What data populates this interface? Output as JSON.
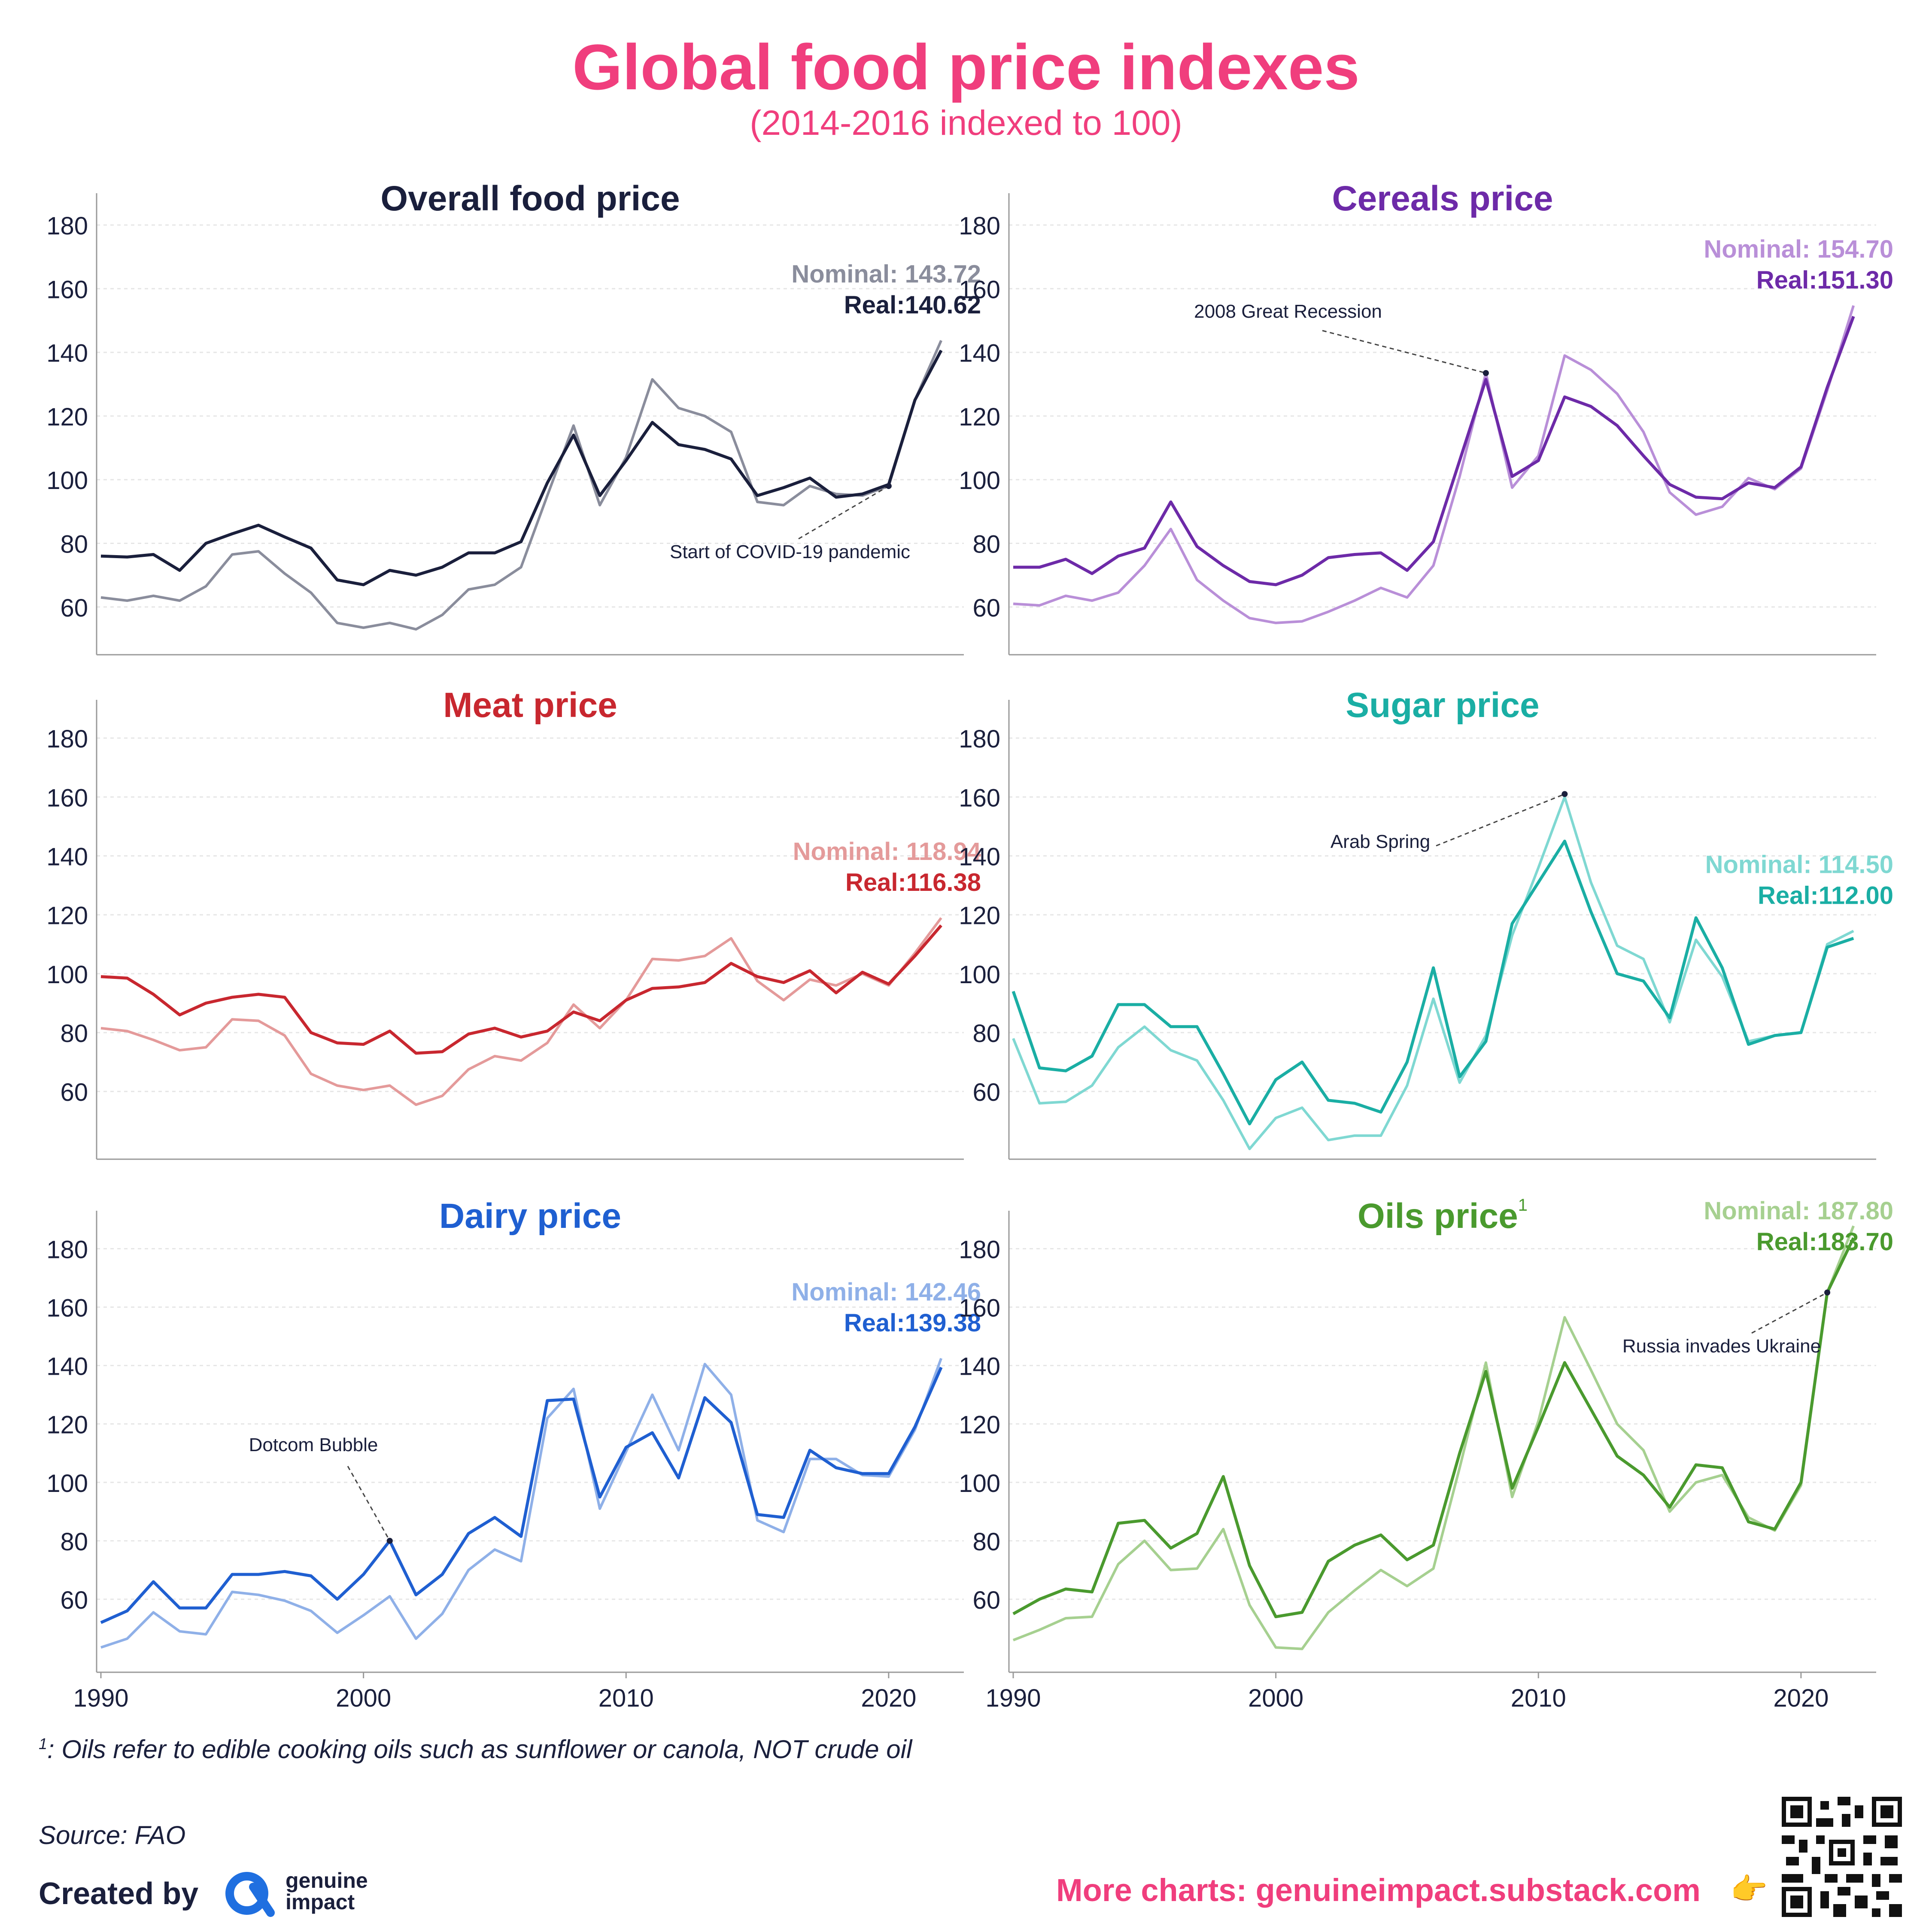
{
  "header": {
    "title": "Global food price indexes",
    "subtitle": "(2014-2016 indexed to 100)"
  },
  "footer": {
    "footnote_mark": "1",
    "footnote": ": Oils refer to edible cooking oils such as sunflower or canola, NOT crude oil",
    "source": "Source: FAO",
    "created_by": "Created by",
    "logo_line1": "genuine",
    "logo_line2": "impact",
    "more_charts": "More charts: genuineimpact.substack.com"
  },
  "colors": {
    "title": "#f03e7d",
    "overall_real": "#1a1f3c",
    "overall_nominal": "#8a8d9c",
    "cereals_real": "#6d2aa8",
    "cereals_nominal": "#b98fd8",
    "meat_real": "#c8272f",
    "meat_nominal": "#e49a9a",
    "sugar_real": "#1aaea4",
    "sugar_nominal": "#7fd8d2",
    "dairy_real": "#1f5fd1",
    "dairy_nominal": "#8fb0e8",
    "oils_real": "#4a9a2e",
    "oils_nominal": "#a6d090"
  },
  "chart_data": [
    {
      "type": "line",
      "title": "Overall food price",
      "x": [
        1990,
        1991,
        1992,
        1993,
        1994,
        1995,
        1996,
        1997,
        1998,
        1999,
        2000,
        2001,
        2002,
        2003,
        2004,
        2005,
        2006,
        2007,
        2008,
        2009,
        2010,
        2011,
        2012,
        2013,
        2014,
        2015,
        2016,
        2017,
        2018,
        2019,
        2020,
        2021,
        2022
      ],
      "series": [
        {
          "name": "Real",
          "values": [
            76,
            75.7,
            76.5,
            71.5,
            80,
            83,
            85.7,
            82,
            78.5,
            68.5,
            67,
            71.5,
            70,
            72.5,
            77,
            77,
            80.5,
            99,
            114,
            95,
            106,
            118,
            111,
            109.5,
            106.5,
            95,
            97.5,
            100.5,
            94.5,
            95.5,
            98.5,
            125,
            140.62
          ]
        },
        {
          "name": "Nominal",
          "values": [
            63,
            62,
            63.5,
            62,
            66.5,
            76.5,
            77.5,
            70.5,
            64.5,
            55,
            53.5,
            55,
            53,
            57.5,
            65.5,
            67,
            72.5,
            95,
            117,
            92,
            107,
            131.5,
            122.5,
            120,
            115,
            93,
            92,
            98,
            95.5,
            95,
            98,
            125,
            143.72
          ]
        }
      ],
      "end_labels": {
        "nominal": "Nominal: 143.72",
        "real": "Real:140.62"
      },
      "annotation": {
        "text": "Start of COVID-19 pandemic",
        "x": 2020,
        "y": 98
      },
      "ylim": [
        45,
        190
      ],
      "yticks": [
        60,
        80,
        100,
        120,
        140,
        160,
        180
      ],
      "xlim": [
        1990,
        2022.7
      ],
      "xticks": [
        1990,
        2000,
        2010,
        2020
      ],
      "grid": true
    },
    {
      "type": "line",
      "title": "Cereals price",
      "x": [
        1990,
        1991,
        1992,
        1993,
        1994,
        1995,
        1996,
        1997,
        1998,
        1999,
        2000,
        2001,
        2002,
        2003,
        2004,
        2005,
        2006,
        2007,
        2008,
        2009,
        2010,
        2011,
        2012,
        2013,
        2014,
        2015,
        2016,
        2017,
        2018,
        2019,
        2020,
        2021,
        2022
      ],
      "series": [
        {
          "name": "Real",
          "values": [
            72.5,
            72.5,
            75,
            70.5,
            76,
            78.5,
            93,
            79,
            73,
            68,
            67,
            70,
            75.5,
            76.5,
            77,
            71.5,
            80.5,
            106,
            131.5,
            101,
            106,
            126,
            123,
            117,
            107.5,
            98.5,
            94.5,
            94,
            99,
            97.5,
            104,
            129,
            151.3
          ]
        },
        {
          "name": "Nominal",
          "values": [
            61,
            60.5,
            63.5,
            62,
            64.5,
            73,
            84.5,
            68.5,
            62,
            56.5,
            55,
            55.5,
            58.5,
            62,
            66,
            63,
            73,
            101,
            133.5,
            97.5,
            107.5,
            139,
            134.5,
            127,
            115,
            96,
            89,
            91.5,
            100.5,
            97,
            103.5,
            128,
            154.7
          ]
        }
      ],
      "end_labels": {
        "nominal": "Nominal: 154.70",
        "real": "Real:151.30"
      },
      "annotation": {
        "text": "2008 Great Recession",
        "x": 2008,
        "y": 133.5
      },
      "ylim": [
        45,
        190
      ],
      "yticks": [
        60,
        80,
        100,
        120,
        140,
        160,
        180
      ],
      "xlim": [
        1990,
        2022.7
      ],
      "xticks": [
        1990,
        2000,
        2010,
        2020
      ],
      "grid": true
    },
    {
      "type": "line",
      "title": "Meat price",
      "x": [
        1990,
        1991,
        1992,
        1993,
        1994,
        1995,
        1996,
        1997,
        1998,
        1999,
        2000,
        2001,
        2002,
        2003,
        2004,
        2005,
        2006,
        2007,
        2008,
        2009,
        2010,
        2011,
        2012,
        2013,
        2014,
        2015,
        2016,
        2017,
        2018,
        2019,
        2020,
        2021,
        2022
      ],
      "series": [
        {
          "name": "Real",
          "values": [
            99,
            98.5,
            93,
            86,
            90,
            92,
            93,
            92,
            80,
            76.5,
            76,
            80.5,
            73,
            73.5,
            79.5,
            81.5,
            78.5,
            80.5,
            87,
            84,
            91,
            95,
            95.5,
            97,
            103.5,
            99,
            97,
            101,
            93.5,
            100.5,
            96.5,
            106,
            116.38
          ]
        },
        {
          "name": "Nominal",
          "values": [
            81.5,
            80.5,
            77.5,
            74,
            75,
            84.5,
            84,
            79,
            66,
            62,
            60.5,
            62,
            55.5,
            58.5,
            67.5,
            72,
            70.5,
            76.5,
            89.5,
            81.5,
            91,
            105,
            104.5,
            106,
            112,
            97.5,
            91,
            98,
            96,
            100,
            96,
            107,
            118.94
          ]
        }
      ],
      "end_labels": {
        "nominal": "Nominal: 118.94",
        "real": "Real:116.38"
      },
      "ylim": [
        37,
        193
      ],
      "yticks": [
        60,
        80,
        100,
        120,
        140,
        160,
        180
      ],
      "xlim": [
        1990,
        2022.7
      ],
      "xticks": [
        1990,
        2000,
        2010,
        2020
      ],
      "grid": true
    },
    {
      "type": "line",
      "title": "Sugar price",
      "x": [
        1990,
        1991,
        1992,
        1993,
        1994,
        1995,
        1996,
        1997,
        1998,
        1999,
        2000,
        2001,
        2002,
        2003,
        2004,
        2005,
        2006,
        2007,
        2008,
        2009,
        2010,
        2011,
        2012,
        2013,
        2014,
        2015,
        2016,
        2017,
        2018,
        2019,
        2020,
        2021,
        2022
      ],
      "series": [
        {
          "name": "Real",
          "values": [
            94,
            68,
            67,
            72,
            89.5,
            89.5,
            82,
            82,
            66,
            49,
            64,
            70,
            57,
            56,
            53,
            70,
            102,
            65,
            77,
            117,
            131,
            145,
            121,
            100,
            97.5,
            85,
            119,
            102,
            76,
            79,
            80,
            109,
            112.0
          ]
        },
        {
          "name": "Nominal",
          "values": [
            78,
            56,
            56.5,
            62,
            75,
            82,
            74,
            70.5,
            57,
            40.5,
            51,
            54.5,
            43.5,
            45,
            45,
            62,
            91.5,
            63,
            79,
            113,
            136,
            160,
            131,
            109.5,
            105,
            83.5,
            111.5,
            99,
            77,
            79,
            80,
            110,
            114.5
          ]
        }
      ],
      "end_labels": {
        "nominal": "Nominal: 114.50",
        "real": "Real:112.00"
      },
      "annotation": {
        "text": "Arab Spring",
        "x": 2011,
        "y": 161
      },
      "ylim": [
        37,
        193
      ],
      "yticks": [
        60,
        80,
        100,
        120,
        140,
        160,
        180
      ],
      "xlim": [
        1990,
        2022.7
      ],
      "xticks": [
        1990,
        2000,
        2010,
        2020
      ],
      "grid": true
    },
    {
      "type": "line",
      "title": "Dairy price",
      "x": [
        1990,
        1991,
        1992,
        1993,
        1994,
        1995,
        1996,
        1997,
        1998,
        1999,
        2000,
        2001,
        2002,
        2003,
        2004,
        2005,
        2006,
        2007,
        2008,
        2009,
        2010,
        2011,
        2012,
        2013,
        2014,
        2015,
        2016,
        2017,
        2018,
        2019,
        2020,
        2021,
        2022
      ],
      "series": [
        {
          "name": "Real",
          "values": [
            52,
            56,
            66,
            57,
            57,
            68.5,
            68.5,
            69.5,
            68,
            60,
            68.5,
            80,
            61.5,
            68.5,
            82.5,
            88,
            81.5,
            128,
            128.5,
            95,
            112,
            117,
            101.5,
            129,
            120.5,
            89,
            88,
            111,
            105,
            103,
            103,
            119,
            139.38
          ]
        },
        {
          "name": "Nominal",
          "values": [
            43.5,
            46.5,
            55.5,
            49,
            48,
            62.5,
            61.5,
            59.5,
            56,
            48.5,
            54.5,
            61,
            46.5,
            55,
            70,
            77,
            73,
            122,
            132,
            91,
            110.5,
            130,
            111,
            140.5,
            130,
            87,
            83,
            108,
            108,
            102.5,
            102,
            118,
            142.46
          ]
        }
      ],
      "end_labels": {
        "nominal": "Nominal: 142.46",
        "real": "Real:139.38"
      },
      "annotation": {
        "text": "Dotcom Bubble",
        "x": 2001,
        "y": 80
      },
      "ylim": [
        35,
        193
      ],
      "yticks": [
        60,
        80,
        100,
        120,
        140,
        160,
        180
      ],
      "xlim": [
        1990,
        2022.7
      ],
      "xticks": [
        1990,
        2000,
        2010,
        2020
      ],
      "grid": true
    },
    {
      "type": "line",
      "title": "Oils price",
      "title_mark": "1",
      "x": [
        1990,
        1991,
        1992,
        1993,
        1994,
        1995,
        1996,
        1997,
        1998,
        1999,
        2000,
        2001,
        2002,
        2003,
        2004,
        2005,
        2006,
        2007,
        2008,
        2009,
        2010,
        2011,
        2012,
        2013,
        2014,
        2015,
        2016,
        2017,
        2018,
        2019,
        2020,
        2021,
        2022
      ],
      "series": [
        {
          "name": "Real",
          "values": [
            55,
            60,
            63.5,
            62.5,
            86,
            87,
            77.5,
            82.5,
            102,
            71.5,
            54,
            55.5,
            73,
            78.5,
            82,
            73.5,
            78.5,
            110,
            138,
            98,
            119,
            141,
            125,
            109,
            102.5,
            91.5,
            106,
            105,
            86.5,
            84,
            100,
            165,
            183.7
          ]
        },
        {
          "name": "Nominal",
          "values": [
            46,
            49.5,
            53.5,
            54,
            72,
            80,
            70,
            70.5,
            84,
            58,
            43.5,
            43,
            55.5,
            63,
            70,
            64.5,
            70.5,
            105,
            141,
            95,
            121,
            156.5,
            138.5,
            120,
            111,
            90,
            100,
            102.5,
            88,
            83.5,
            99,
            165,
            187.8
          ]
        }
      ],
      "end_labels": {
        "nominal": "Nominal: 187.80",
        "real": "Real:183.70"
      },
      "annotation": {
        "text": "Russia invades Ukraine",
        "x": 2021,
        "y": 165
      },
      "ylim": [
        35,
        193
      ],
      "yticks": [
        60,
        80,
        100,
        120,
        140,
        160,
        180
      ],
      "xlim": [
        1990,
        2022.7
      ],
      "xticks": [
        1990,
        2000,
        2010,
        2020
      ],
      "grid": true
    }
  ]
}
